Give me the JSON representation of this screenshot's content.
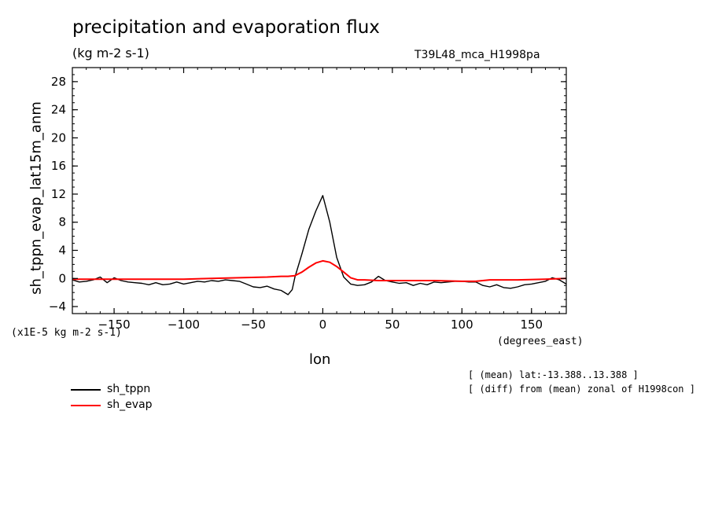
{
  "chart_data": {
    "type": "line",
    "title": "precipitation and evaporation flux",
    "subtitle": "(kg m-2 s-1)",
    "run_label": "T39L48_mca_H1998pa",
    "xlabel": "lon",
    "x_units": "(degrees_east)",
    "ylabel": "sh_tppn_evap_lat15m_anm",
    "y_scale_note": "(x1E-5 kg m-2 s-1)",
    "xlim": [
      -180,
      175
    ],
    "ylim": [
      -5,
      30
    ],
    "x_ticks": [
      -150,
      -100,
      -50,
      0,
      50,
      100,
      150
    ],
    "y_ticks": [
      -4,
      0,
      4,
      8,
      12,
      16,
      20,
      24,
      28
    ],
    "notes": [
      "[ (mean) lat:-13.388..13.388 ]",
      "[ (diff) from (mean) zonal of H1998con ]"
    ],
    "legend_position": "bottom-left",
    "series": [
      {
        "name": "sh_tppn",
        "color": "#000000",
        "x": [
          -180,
          -175,
          -170,
          -165,
          -160,
          -155,
          -150,
          -145,
          -140,
          -135,
          -130,
          -125,
          -120,
          -115,
          -110,
          -105,
          -100,
          -95,
          -90,
          -85,
          -80,
          -75,
          -70,
          -65,
          -60,
          -55,
          -50,
          -45,
          -40,
          -35,
          -30,
          -25,
          -22,
          -20,
          -15,
          -10,
          -5,
          0,
          5,
          10,
          15,
          20,
          25,
          30,
          35,
          40,
          45,
          50,
          55,
          60,
          65,
          70,
          75,
          80,
          85,
          90,
          95,
          100,
          105,
          110,
          115,
          120,
          125,
          130,
          135,
          140,
          145,
          150,
          155,
          160,
          165,
          170,
          175
        ],
        "y": [
          -0.2,
          -0.5,
          -0.4,
          -0.2,
          0.2,
          -0.6,
          0.1,
          -0.3,
          -0.5,
          -0.6,
          -0.7,
          -0.9,
          -0.6,
          -0.9,
          -0.8,
          -0.5,
          -0.8,
          -0.6,
          -0.4,
          -0.5,
          -0.3,
          -0.4,
          -0.2,
          -0.3,
          -0.4,
          -0.8,
          -1.2,
          -1.3,
          -1.1,
          -1.5,
          -1.7,
          -2.3,
          -1.6,
          0.2,
          3.5,
          7.0,
          9.6,
          11.8,
          8.0,
          3.0,
          0.2,
          -0.8,
          -1.0,
          -0.9,
          -0.5,
          0.3,
          -0.3,
          -0.5,
          -0.7,
          -0.6,
          -1.0,
          -0.7,
          -0.9,
          -0.5,
          -0.6,
          -0.5,
          -0.4,
          -0.4,
          -0.5,
          -0.5,
          -1.0,
          -1.2,
          -0.9,
          -1.3,
          -1.4,
          -1.2,
          -0.9,
          -0.8,
          -0.6,
          -0.4,
          0.1,
          -0.2,
          -0.8
        ]
      },
      {
        "name": "sh_evap",
        "color": "#ff0000",
        "x": [
          -180,
          -160,
          -140,
          -120,
          -100,
          -80,
          -60,
          -40,
          -30,
          -25,
          -20,
          -15,
          -10,
          -5,
          0,
          5,
          10,
          15,
          20,
          25,
          30,
          40,
          60,
          80,
          100,
          110,
          120,
          140,
          160,
          175
        ],
        "y": [
          -0.1,
          -0.1,
          -0.1,
          -0.1,
          -0.1,
          0.0,
          0.1,
          0.2,
          0.3,
          0.3,
          0.4,
          0.9,
          1.6,
          2.2,
          2.5,
          2.3,
          1.7,
          0.9,
          0.1,
          -0.2,
          -0.2,
          -0.3,
          -0.3,
          -0.3,
          -0.4,
          -0.4,
          -0.2,
          -0.2,
          -0.1,
          0.0
        ]
      }
    ]
  }
}
